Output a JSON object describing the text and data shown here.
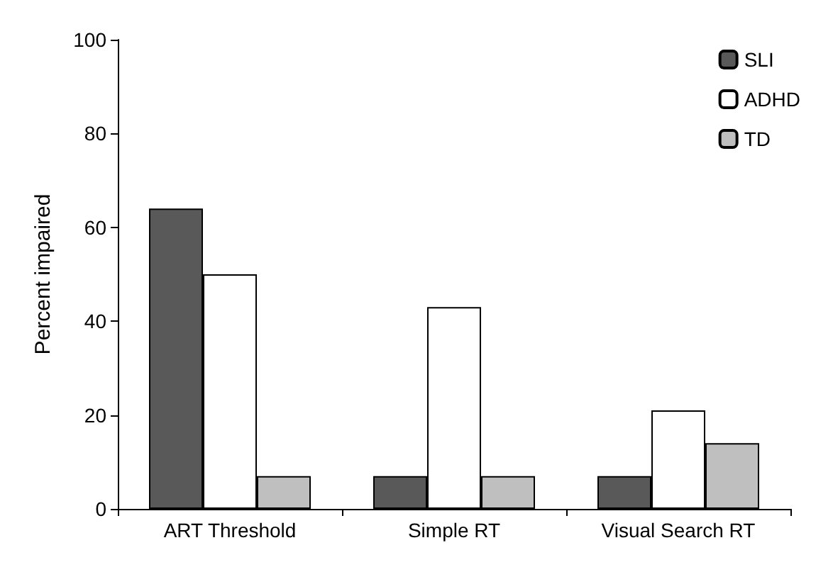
{
  "chart_data": {
    "type": "bar",
    "ylabel": "Percent impaired",
    "categories": [
      "ART Threshold",
      "Simple RT",
      "Visual Search RT"
    ],
    "series": [
      {
        "name": "SLI",
        "color": "#595959",
        "values": [
          64,
          7,
          7
        ]
      },
      {
        "name": "ADHD",
        "color": "#ffffff",
        "values": [
          50,
          43,
          21
        ]
      },
      {
        "name": "TD",
        "color": "#bfbfbf",
        "values": [
          7,
          7,
          14
        ]
      }
    ],
    "ylim": [
      0,
      100
    ],
    "yticks": [
      0,
      20,
      40,
      60,
      80,
      100
    ],
    "grid": false,
    "legend": "top right"
  }
}
